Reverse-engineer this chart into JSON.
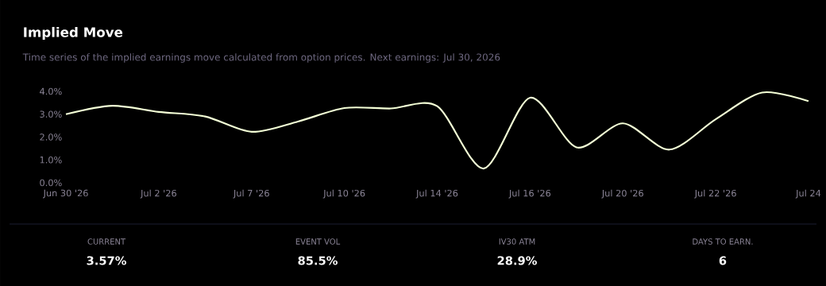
{
  "chart_data": {
    "type": "line",
    "title": "Implied Move",
    "subtitle": "Time series of the implied earnings move calculated from option prices. Next earnings: Jul 30, 2026",
    "categories": [
      "Jun 30 '26",
      null,
      "Jul 2 '26",
      null,
      "Jul 7 '26",
      null,
      "Jul 10 '26",
      null,
      "Jul 14 '26",
      null,
      "Jul 16 '26",
      null,
      "Jul 20 '26",
      null,
      "Jul 22 '26",
      null,
      "Jul 24"
    ],
    "values": [
      3.0,
      3.37,
      3.1,
      2.9,
      2.23,
      2.68,
      3.27,
      3.25,
      3.35,
      0.62,
      3.72,
      1.55,
      2.6,
      1.45,
      2.78,
      3.95,
      3.57
    ],
    "color": "#f4ffd6",
    "ylim": [
      0,
      4
    ],
    "yticks": [
      {
        "value": 0,
        "label": "0.0%"
      },
      {
        "value": 1,
        "label": "1.0%"
      },
      {
        "value": 2,
        "label": "2.0%"
      },
      {
        "value": 3,
        "label": "3.0%"
      },
      {
        "value": 4,
        "label": "4.0%"
      }
    ],
    "annotations": [
      "CURRENT",
      "3.57%",
      "EVENT VOL",
      "85.5%",
      "IV30 ATM",
      "28.9%",
      "DAYS TO EARN.",
      "6"
    ]
  }
}
